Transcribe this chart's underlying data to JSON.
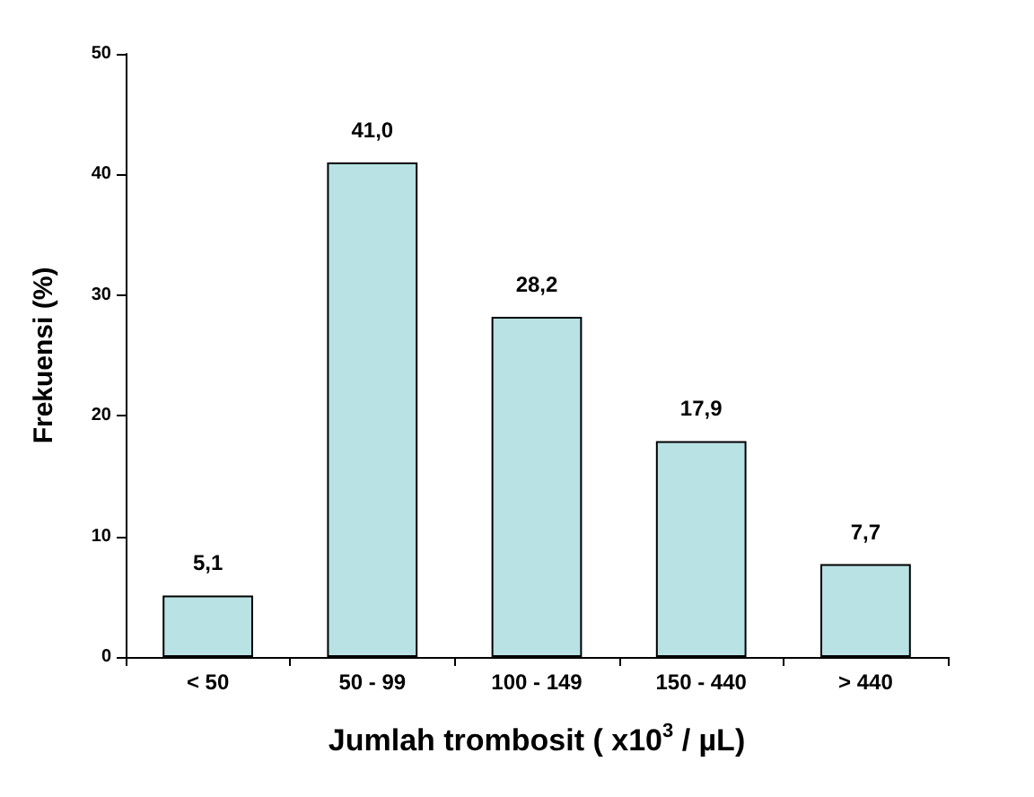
{
  "chart_data": {
    "type": "bar",
    "xlabel": "Jumlah trombosit ( x10$^{3}$ / µL)",
    "ylabel": "Frekuensi (%)",
    "categories": [
      "< 50",
      "50 - 99",
      "100 - 149",
      "150 - 440",
      "> 440"
    ],
    "values": [
      5.1,
      41.0,
      28.2,
      17.9,
      7.7
    ],
    "value_labels": [
      "5,1",
      "41,0",
      "28,2",
      "17,9",
      "7,7"
    ],
    "color": "#b9e2e4",
    "ylim": [
      0,
      50
    ],
    "yticks": [
      0,
      10,
      20,
      30,
      40,
      50
    ],
    "grid": false
  }
}
